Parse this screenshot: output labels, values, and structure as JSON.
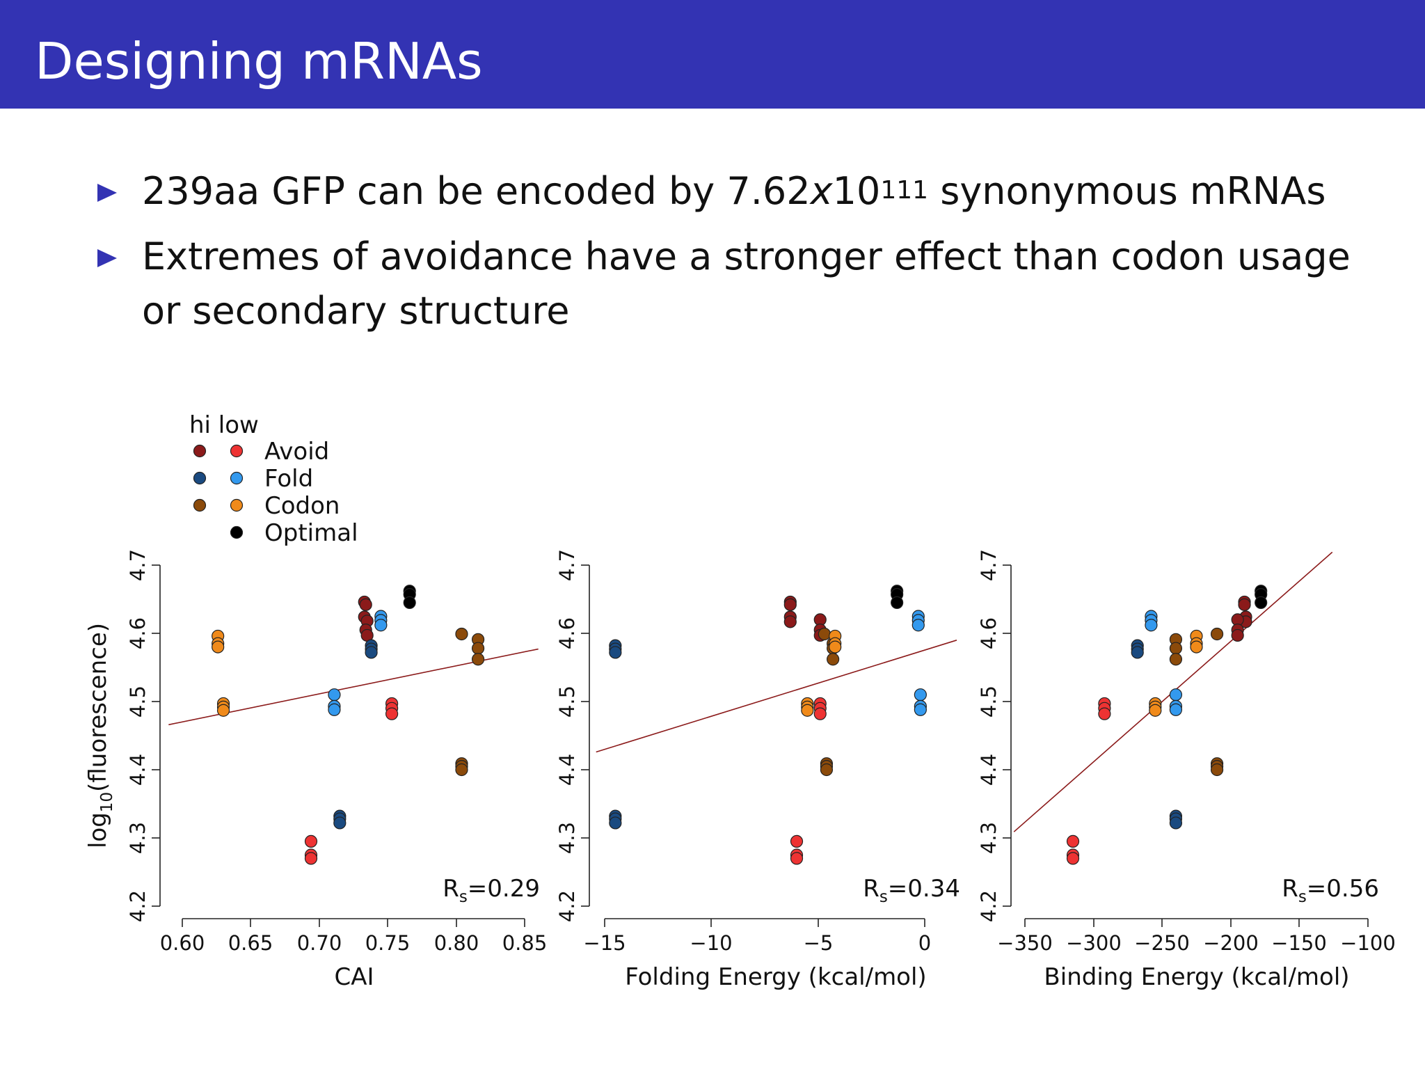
{
  "slide": {
    "title": "Designing mRNAs",
    "bullets": [
      {
        "before": "239aa GFP can be encoded by 7.62",
        "x": "x",
        "base": "10",
        "exp": "111",
        "after": " synonymous mRNAs"
      },
      {
        "before": "Extremes of avoidance have a stronger effect than codon usage or secondary structure"
      }
    ]
  },
  "legend": {
    "header": "hi low",
    "entries": [
      {
        "label": "Avoid",
        "hi_color": "#8b1a1a",
        "low_color": "#ee3333"
      },
      {
        "label": "Fold",
        "hi_color": "#1a4a80",
        "low_color": "#3399ee"
      },
      {
        "label": "Codon",
        "hi_color": "#8b4a0a",
        "low_color": "#f08a1a"
      },
      {
        "label": "Optimal",
        "hi_color": null,
        "low_color": "#000000"
      }
    ]
  },
  "colors": {
    "avoid_hi": "#8b1a1a",
    "avoid_low": "#ee3333",
    "fold_hi": "#1a4a80",
    "fold_low": "#3399ee",
    "codon_hi": "#8b4a0a",
    "codon_low": "#f08a1a",
    "optimal": "#000000",
    "fit_line": "#8b1a1a",
    "accent": "#3333b3"
  },
  "chart_data": [
    {
      "type": "scatter",
      "xlabel": "CAI",
      "ylabel": "log10(fluorescence)",
      "xlim": [
        0.6,
        0.85
      ],
      "ylim": [
        4.2,
        4.7
      ],
      "xticks": [
        "0.60",
        "0.65",
        "0.70",
        "0.75",
        "0.80",
        "0.85"
      ],
      "xtick_values": [
        0.6,
        0.65,
        0.7,
        0.75,
        0.8,
        0.85
      ],
      "yticks": [
        "4.2",
        "4.3",
        "4.4",
        "4.5",
        "4.6",
        "4.7"
      ],
      "ytick_values": [
        4.2,
        4.3,
        4.4,
        4.5,
        4.6,
        4.7
      ],
      "annotation": {
        "prefix": "R",
        "sub": "s",
        "value": "=0.29"
      },
      "fit_line": [
        [
          0.59,
          4.466
        ],
        [
          0.86,
          4.577
        ]
      ],
      "series": [
        {
          "group": "avoid_hi",
          "points": [
            [
              0.733,
              4.646
            ],
            [
              0.734,
              4.642
            ],
            [
              0.733,
              4.624
            ],
            [
              0.735,
              4.618
            ],
            [
              0.734,
              4.605
            ],
            [
              0.735,
              4.597
            ]
          ]
        },
        {
          "group": "avoid_low",
          "points": [
            [
              0.694,
              4.295
            ],
            [
              0.694,
              4.275
            ],
            [
              0.694,
              4.27
            ],
            [
              0.753,
              4.497
            ],
            [
              0.753,
              4.49
            ],
            [
              0.753,
              4.482
            ]
          ]
        },
        {
          "group": "fold_hi",
          "points": [
            [
              0.738,
              4.582
            ],
            [
              0.738,
              4.577
            ],
            [
              0.738,
              4.572
            ],
            [
              0.715,
              4.332
            ],
            [
              0.715,
              4.328
            ],
            [
              0.715,
              4.322
            ]
          ]
        },
        {
          "group": "fold_low",
          "points": [
            [
              0.745,
              4.625
            ],
            [
              0.745,
              4.619
            ],
            [
              0.745,
              4.612
            ],
            [
              0.711,
              4.51
            ],
            [
              0.711,
              4.493
            ],
            [
              0.711,
              4.488
            ]
          ]
        },
        {
          "group": "codon_hi",
          "points": [
            [
              0.804,
              4.599
            ],
            [
              0.816,
              4.591
            ],
            [
              0.816,
              4.578
            ],
            [
              0.816,
              4.562
            ],
            [
              0.804,
              4.409
            ],
            [
              0.804,
              4.405
            ],
            [
              0.804,
              4.4
            ]
          ]
        },
        {
          "group": "codon_low",
          "points": [
            [
              0.626,
              4.596
            ],
            [
              0.626,
              4.585
            ],
            [
              0.626,
              4.58
            ],
            [
              0.63,
              4.497
            ],
            [
              0.63,
              4.492
            ],
            [
              0.63,
              4.487
            ]
          ]
        },
        {
          "group": "optimal",
          "points": [
            [
              0.766,
              4.662
            ],
            [
              0.766,
              4.657
            ],
            [
              0.766,
              4.645
            ]
          ]
        }
      ]
    },
    {
      "type": "scatter",
      "xlabel": "Folding Energy (kcal/mol)",
      "ylabel": "",
      "xlim": [
        -15,
        0
      ],
      "ylim": [
        4.2,
        4.7
      ],
      "xticks": [
        "−15",
        "−10",
        "−5",
        "0"
      ],
      "xtick_values": [
        -15,
        -10,
        -5,
        0
      ],
      "yticks": [
        "4.2",
        "4.3",
        "4.4",
        "4.5",
        "4.6",
        "4.7"
      ],
      "ytick_values": [
        4.2,
        4.3,
        4.4,
        4.5,
        4.6,
        4.7
      ],
      "annotation": {
        "prefix": "R",
        "sub": "s",
        "value": "=0.34"
      },
      "fit_line": [
        [
          -15.4,
          4.426
        ],
        [
          1.5,
          4.59
        ]
      ],
      "series": [
        {
          "group": "avoid_hi",
          "points": [
            [
              -6.3,
              4.646
            ],
            [
              -6.3,
              4.642
            ],
            [
              -6.3,
              4.624
            ],
            [
              -6.3,
              4.617
            ],
            [
              -4.9,
              4.62
            ],
            [
              -4.9,
              4.605
            ],
            [
              -4.9,
              4.597
            ]
          ]
        },
        {
          "group": "avoid_low",
          "points": [
            [
              -6.0,
              4.295
            ],
            [
              -6.0,
              4.275
            ],
            [
              -6.0,
              4.27
            ],
            [
              -4.9,
              4.497
            ],
            [
              -4.9,
              4.49
            ],
            [
              -4.9,
              4.482
            ]
          ]
        },
        {
          "group": "fold_hi",
          "points": [
            [
              -14.5,
              4.582
            ],
            [
              -14.5,
              4.577
            ],
            [
              -14.5,
              4.572
            ],
            [
              -14.5,
              4.332
            ],
            [
              -14.5,
              4.328
            ],
            [
              -14.5,
              4.322
            ]
          ]
        },
        {
          "group": "fold_low",
          "points": [
            [
              -0.3,
              4.625
            ],
            [
              -0.3,
              4.619
            ],
            [
              -0.3,
              4.612
            ],
            [
              -0.2,
              4.51
            ],
            [
              -0.2,
              4.493
            ],
            [
              -0.2,
              4.488
            ]
          ]
        },
        {
          "group": "codon_hi",
          "points": [
            [
              -4.7,
              4.599
            ],
            [
              -4.3,
              4.585
            ],
            [
              -4.3,
              4.578
            ],
            [
              -4.3,
              4.562
            ],
            [
              -4.6,
              4.409
            ],
            [
              -4.6,
              4.405
            ],
            [
              -4.6,
              4.4
            ]
          ]
        },
        {
          "group": "codon_low",
          "points": [
            [
              -4.2,
              4.596
            ],
            [
              -4.2,
              4.585
            ],
            [
              -4.2,
              4.58
            ],
            [
              -5.5,
              4.497
            ],
            [
              -5.5,
              4.492
            ],
            [
              -5.5,
              4.487
            ]
          ]
        },
        {
          "group": "optimal",
          "points": [
            [
              -1.3,
              4.662
            ],
            [
              -1.3,
              4.657
            ],
            [
              -1.3,
              4.645
            ]
          ]
        }
      ]
    },
    {
      "type": "scatter",
      "xlabel": "Binding Energy (kcal/mol)",
      "ylabel": "",
      "xlim": [
        -350,
        -100
      ],
      "ylim": [
        4.2,
        4.7
      ],
      "xticks": [
        "−350",
        "−300",
        "−250",
        "−200",
        "−150",
        "−100"
      ],
      "xtick_values": [
        -350,
        -300,
        -250,
        -200,
        -150,
        -100
      ],
      "yticks": [
        "4.2",
        "4.3",
        "4.4",
        "4.5",
        "4.6",
        "4.7"
      ],
      "ytick_values": [
        4.2,
        4.3,
        4.4,
        4.5,
        4.6,
        4.7
      ],
      "annotation": {
        "prefix": "R",
        "sub": "s",
        "value": "=0.56"
      },
      "fit_line": [
        [
          -358,
          4.309
        ],
        [
          -126,
          4.719
        ]
      ],
      "series": [
        {
          "group": "avoid_hi",
          "points": [
            [
              -190,
              4.646
            ],
            [
              -190,
              4.642
            ],
            [
              -189,
              4.624
            ],
            [
              -189,
              4.617
            ],
            [
              -195,
              4.62
            ],
            [
              -195,
              4.605
            ],
            [
              -195,
              4.597
            ]
          ]
        },
        {
          "group": "avoid_low",
          "points": [
            [
              -315,
              4.295
            ],
            [
              -315,
              4.275
            ],
            [
              -315,
              4.27
            ],
            [
              -292,
              4.497
            ],
            [
              -292,
              4.49
            ],
            [
              -292,
              4.482
            ]
          ]
        },
        {
          "group": "fold_hi",
          "points": [
            [
              -268,
              4.582
            ],
            [
              -268,
              4.577
            ],
            [
              -268,
              4.572
            ],
            [
              -240,
              4.332
            ],
            [
              -240,
              4.328
            ],
            [
              -240,
              4.322
            ]
          ]
        },
        {
          "group": "fold_low",
          "points": [
            [
              -258,
              4.625
            ],
            [
              -258,
              4.619
            ],
            [
              -258,
              4.612
            ],
            [
              -240,
              4.51
            ],
            [
              -240,
              4.493
            ],
            [
              -240,
              4.488
            ]
          ]
        },
        {
          "group": "codon_hi",
          "points": [
            [
              -210,
              4.599
            ],
            [
              -240,
              4.591
            ],
            [
              -240,
              4.578
            ],
            [
              -240,
              4.562
            ],
            [
              -210,
              4.409
            ],
            [
              -210,
              4.405
            ],
            [
              -210,
              4.4
            ]
          ]
        },
        {
          "group": "codon_low",
          "points": [
            [
              -225,
              4.596
            ],
            [
              -225,
              4.585
            ],
            [
              -225,
              4.58
            ],
            [
              -255,
              4.497
            ],
            [
              -255,
              4.492
            ],
            [
              -255,
              4.487
            ]
          ]
        },
        {
          "group": "optimal",
          "points": [
            [
              -178,
              4.662
            ],
            [
              -178,
              4.657
            ],
            [
              -178,
              4.645
            ]
          ]
        }
      ]
    }
  ]
}
